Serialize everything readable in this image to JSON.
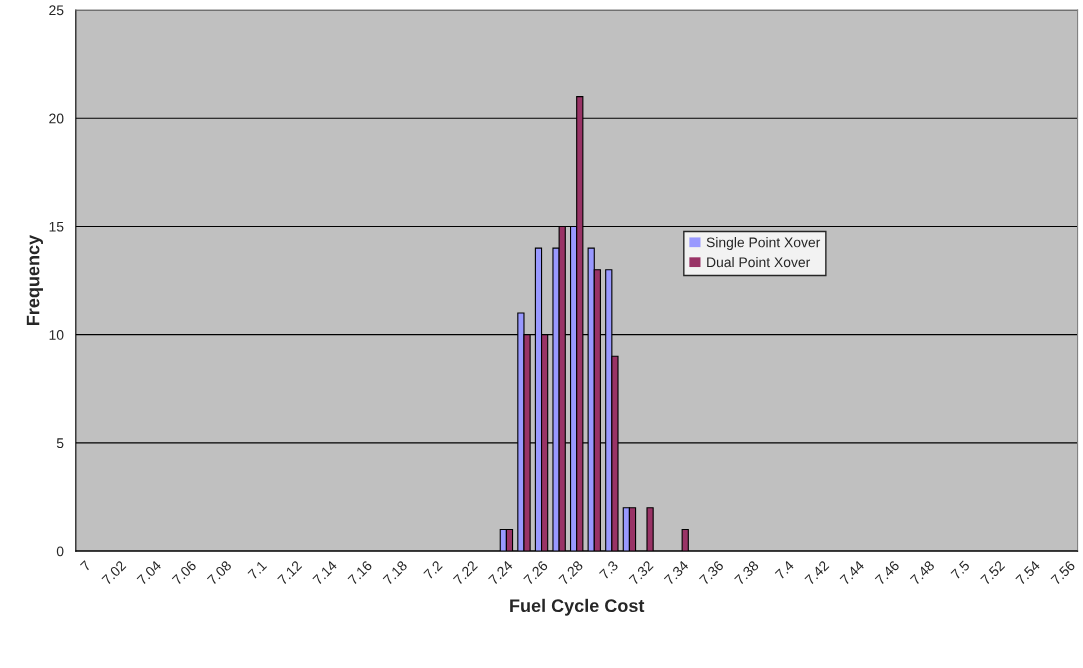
{
  "chart_data": {
    "type": "bar",
    "xlabel": "Fuel Cycle Cost",
    "ylabel": "Frequency",
    "categories": [
      "7",
      null,
      "7.02",
      null,
      "7.04",
      null,
      "7.06",
      null,
      "7.08",
      null,
      "7.1",
      null,
      "7.12",
      null,
      "7.14",
      null,
      "7.16",
      null,
      "7.18",
      null,
      "7.2",
      null,
      "7.22",
      null,
      "7.24",
      null,
      "7.26",
      null,
      "7.28",
      null,
      "7.3",
      null,
      "7.32",
      null,
      "7.34",
      null,
      "7.36",
      null,
      "7.38",
      null,
      "7.4",
      null,
      "7.42",
      null,
      "7.44",
      null,
      "7.46",
      null,
      "7.48",
      null,
      "7.5",
      null,
      "7.52",
      null,
      "7.54",
      null,
      "7.56"
    ],
    "series": [
      {
        "name": "Single Point Xover",
        "color": "#9999ff",
        "values": [
          0,
          0,
          0,
          0,
          0,
          0,
          0,
          0,
          0,
          0,
          0,
          0,
          0,
          0,
          0,
          0,
          0,
          0,
          0,
          0,
          0,
          0,
          0,
          0,
          1,
          11,
          14,
          14,
          15,
          14,
          13,
          2,
          0,
          0,
          0,
          0,
          0,
          0,
          0,
          0,
          0,
          0,
          0,
          0,
          0,
          0,
          0,
          0,
          0,
          0,
          0,
          0,
          0,
          0,
          0,
          0,
          0
        ]
      },
      {
        "name": "Dual Point Xover",
        "color": "#993366",
        "values": [
          0,
          0,
          0,
          0,
          0,
          0,
          0,
          0,
          0,
          0,
          0,
          0,
          0,
          0,
          0,
          0,
          0,
          0,
          0,
          0,
          0,
          0,
          0,
          0,
          1,
          10,
          10,
          15,
          21,
          13,
          9,
          2,
          2,
          0,
          1,
          0,
          0,
          0,
          0,
          0,
          0,
          0,
          0,
          0,
          0,
          0,
          0,
          0,
          0,
          0,
          0,
          0,
          0,
          0,
          0,
          0,
          0
        ]
      }
    ],
    "ylim": [
      0,
      25
    ],
    "yticks": [
      0,
      5,
      10,
      15,
      20,
      25
    ],
    "grid": "y",
    "legend": "right"
  }
}
